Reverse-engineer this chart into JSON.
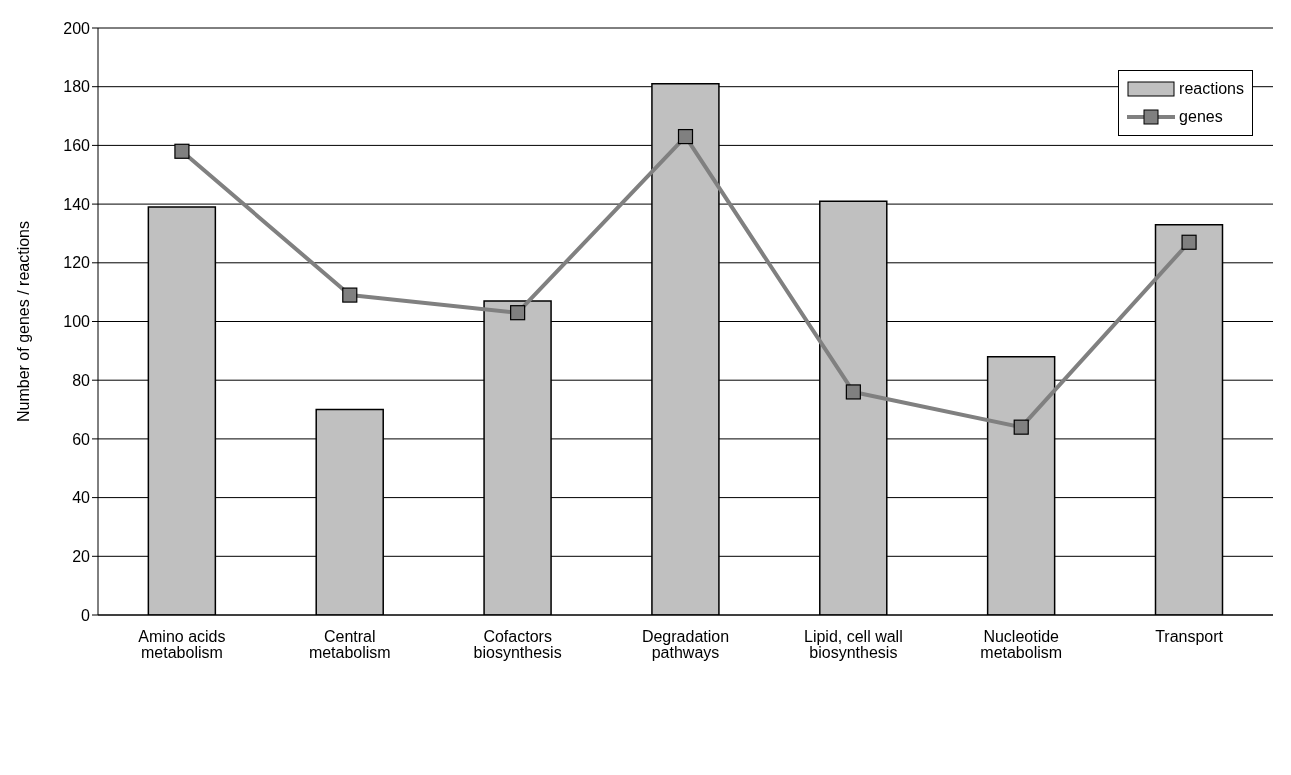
{
  "chart_data": {
    "type": "bar",
    "ylabel": "Number of genes / reactions",
    "categories": [
      "Amino acids metabolism",
      "Central metabolism",
      "Cofactors biosynthesis",
      "Degradation pathways",
      "Lipid, cell wall biosynthesis",
      "Nucleotide metabolism",
      "Transport"
    ],
    "series": [
      {
        "name": "reactions",
        "color": "#c0c0c0",
        "values": [
          139,
          70,
          107,
          181,
          141,
          88,
          133
        ]
      },
      {
        "name": "genes",
        "type": "line",
        "color": "#808080",
        "values": [
          158,
          109,
          103,
          163,
          76,
          64,
          127
        ]
      }
    ],
    "ylim": [
      0,
      200
    ],
    "yticks": [
      0,
      20,
      40,
      60,
      80,
      100,
      120,
      140,
      160,
      180,
      200
    ],
    "grid": "y",
    "legend": "top right",
    "marker": "square",
    "line_style": "solid"
  }
}
